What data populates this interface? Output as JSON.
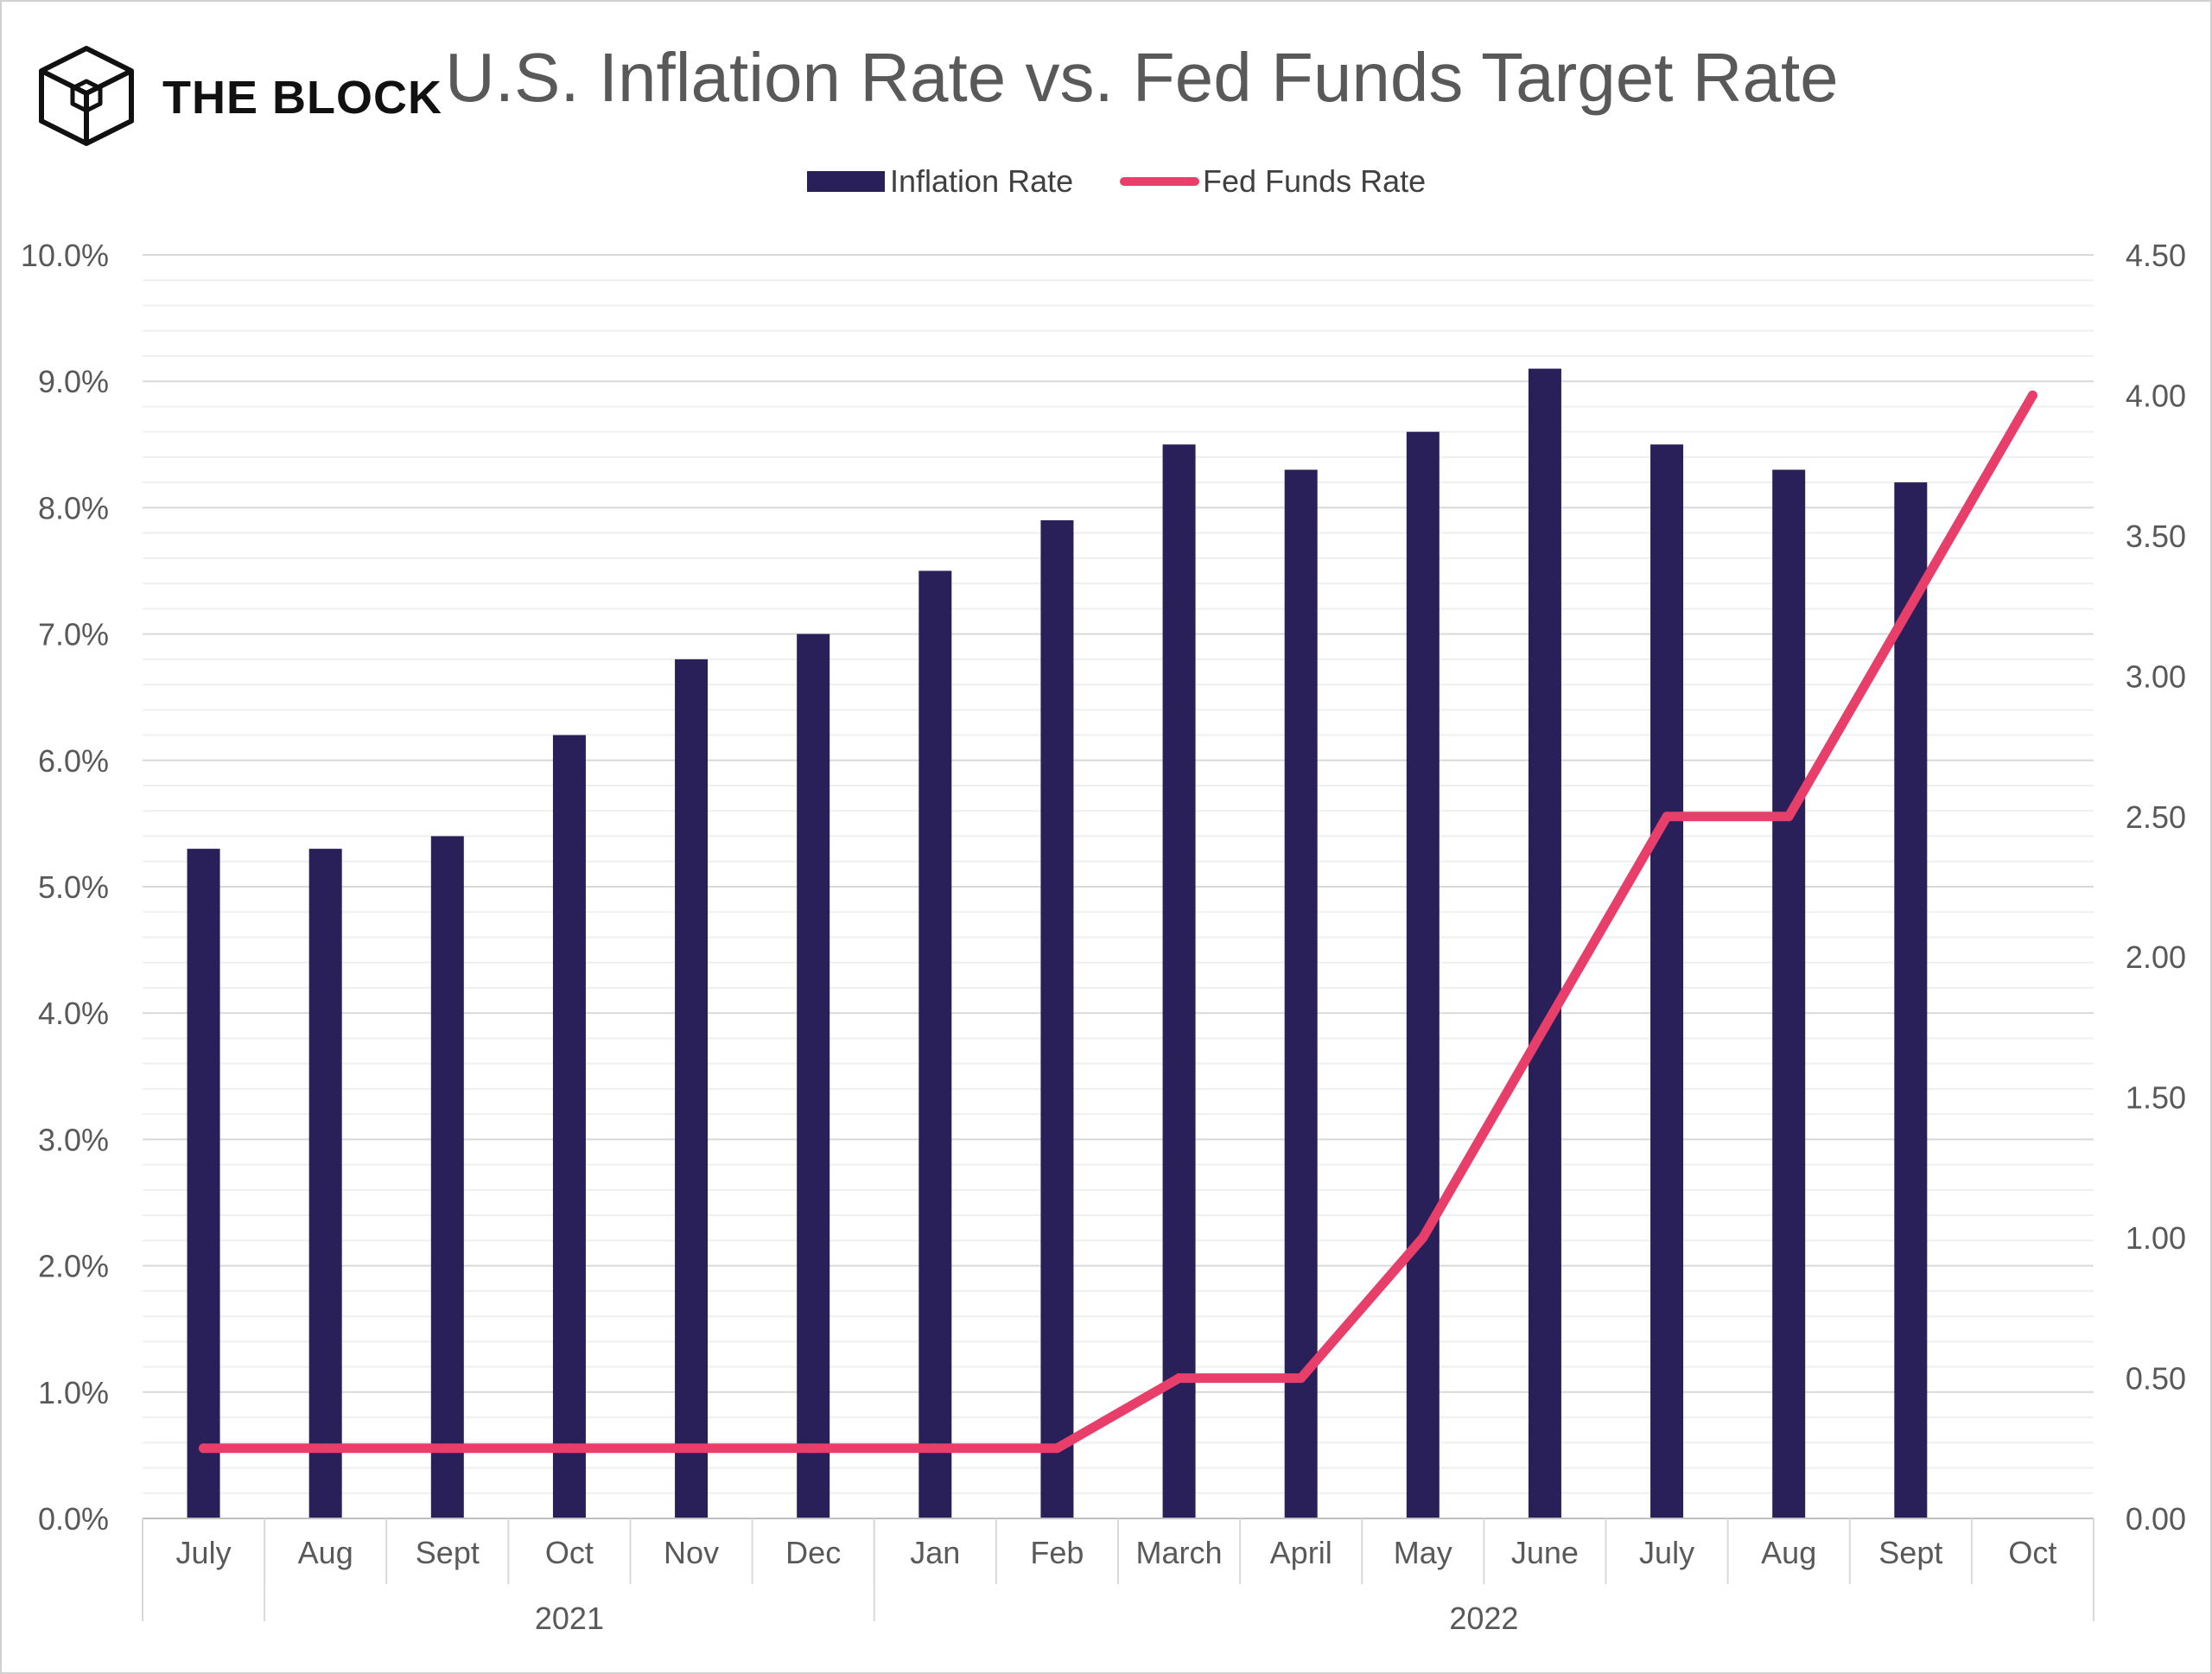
{
  "brand": {
    "name": "THE BLOCK",
    "logo_icon": "isometric-cube-icon"
  },
  "chart_data": {
    "type": "bar",
    "title": "U.S. Inflation Rate vs. Fed Funds Target Rate",
    "categories": [
      "July",
      "Aug",
      "Sept",
      "Oct",
      "Nov",
      "Dec",
      "Jan",
      "Feb",
      "March",
      "April",
      "May",
      "June",
      "July",
      "Aug",
      "Sept",
      "Oct"
    ],
    "category_groups": [
      {
        "label": "",
        "span": 1
      },
      {
        "label": "2021",
        "span": 5
      },
      {
        "label": "2022",
        "span": 10
      }
    ],
    "series": [
      {
        "name": "Inflation Rate",
        "type": "bar",
        "axis": "left",
        "color": "#2a2059",
        "values": [
          5.3,
          5.3,
          5.4,
          6.2,
          6.8,
          7.0,
          7.5,
          7.9,
          8.5,
          8.3,
          8.6,
          9.1,
          8.5,
          8.3,
          8.2,
          null
        ]
      },
      {
        "name": "Fed Funds Rate",
        "type": "line",
        "axis": "right",
        "color": "#e83e6a",
        "values": [
          0.25,
          0.25,
          0.25,
          0.25,
          0.25,
          0.25,
          0.25,
          0.25,
          0.5,
          0.5,
          1.0,
          1.75,
          2.5,
          2.5,
          3.25,
          4.0
        ]
      }
    ],
    "y_left": {
      "min": 0,
      "max": 10,
      "ticks": [
        0,
        1,
        2,
        3,
        4,
        5,
        6,
        7,
        8,
        9,
        10
      ],
      "tick_labels": [
        "0.0%",
        "1.0%",
        "2.0%",
        "3.0%",
        "4.0%",
        "5.0%",
        "6.0%",
        "7.0%",
        "8.0%",
        "9.0%",
        "10.0%"
      ]
    },
    "y_right": {
      "min": 0,
      "max": 4.5,
      "ticks": [
        0,
        0.5,
        1,
        1.5,
        2,
        2.5,
        3,
        3.5,
        4,
        4.5
      ],
      "tick_labels": [
        "0.00",
        "0.50",
        "1.00",
        "1.50",
        "2.00",
        "2.50",
        "3.00",
        "3.50",
        "4.00",
        "4.50"
      ]
    },
    "minor_gridline_step": 0.2,
    "grid": true,
    "legend_position": "top-center"
  }
}
